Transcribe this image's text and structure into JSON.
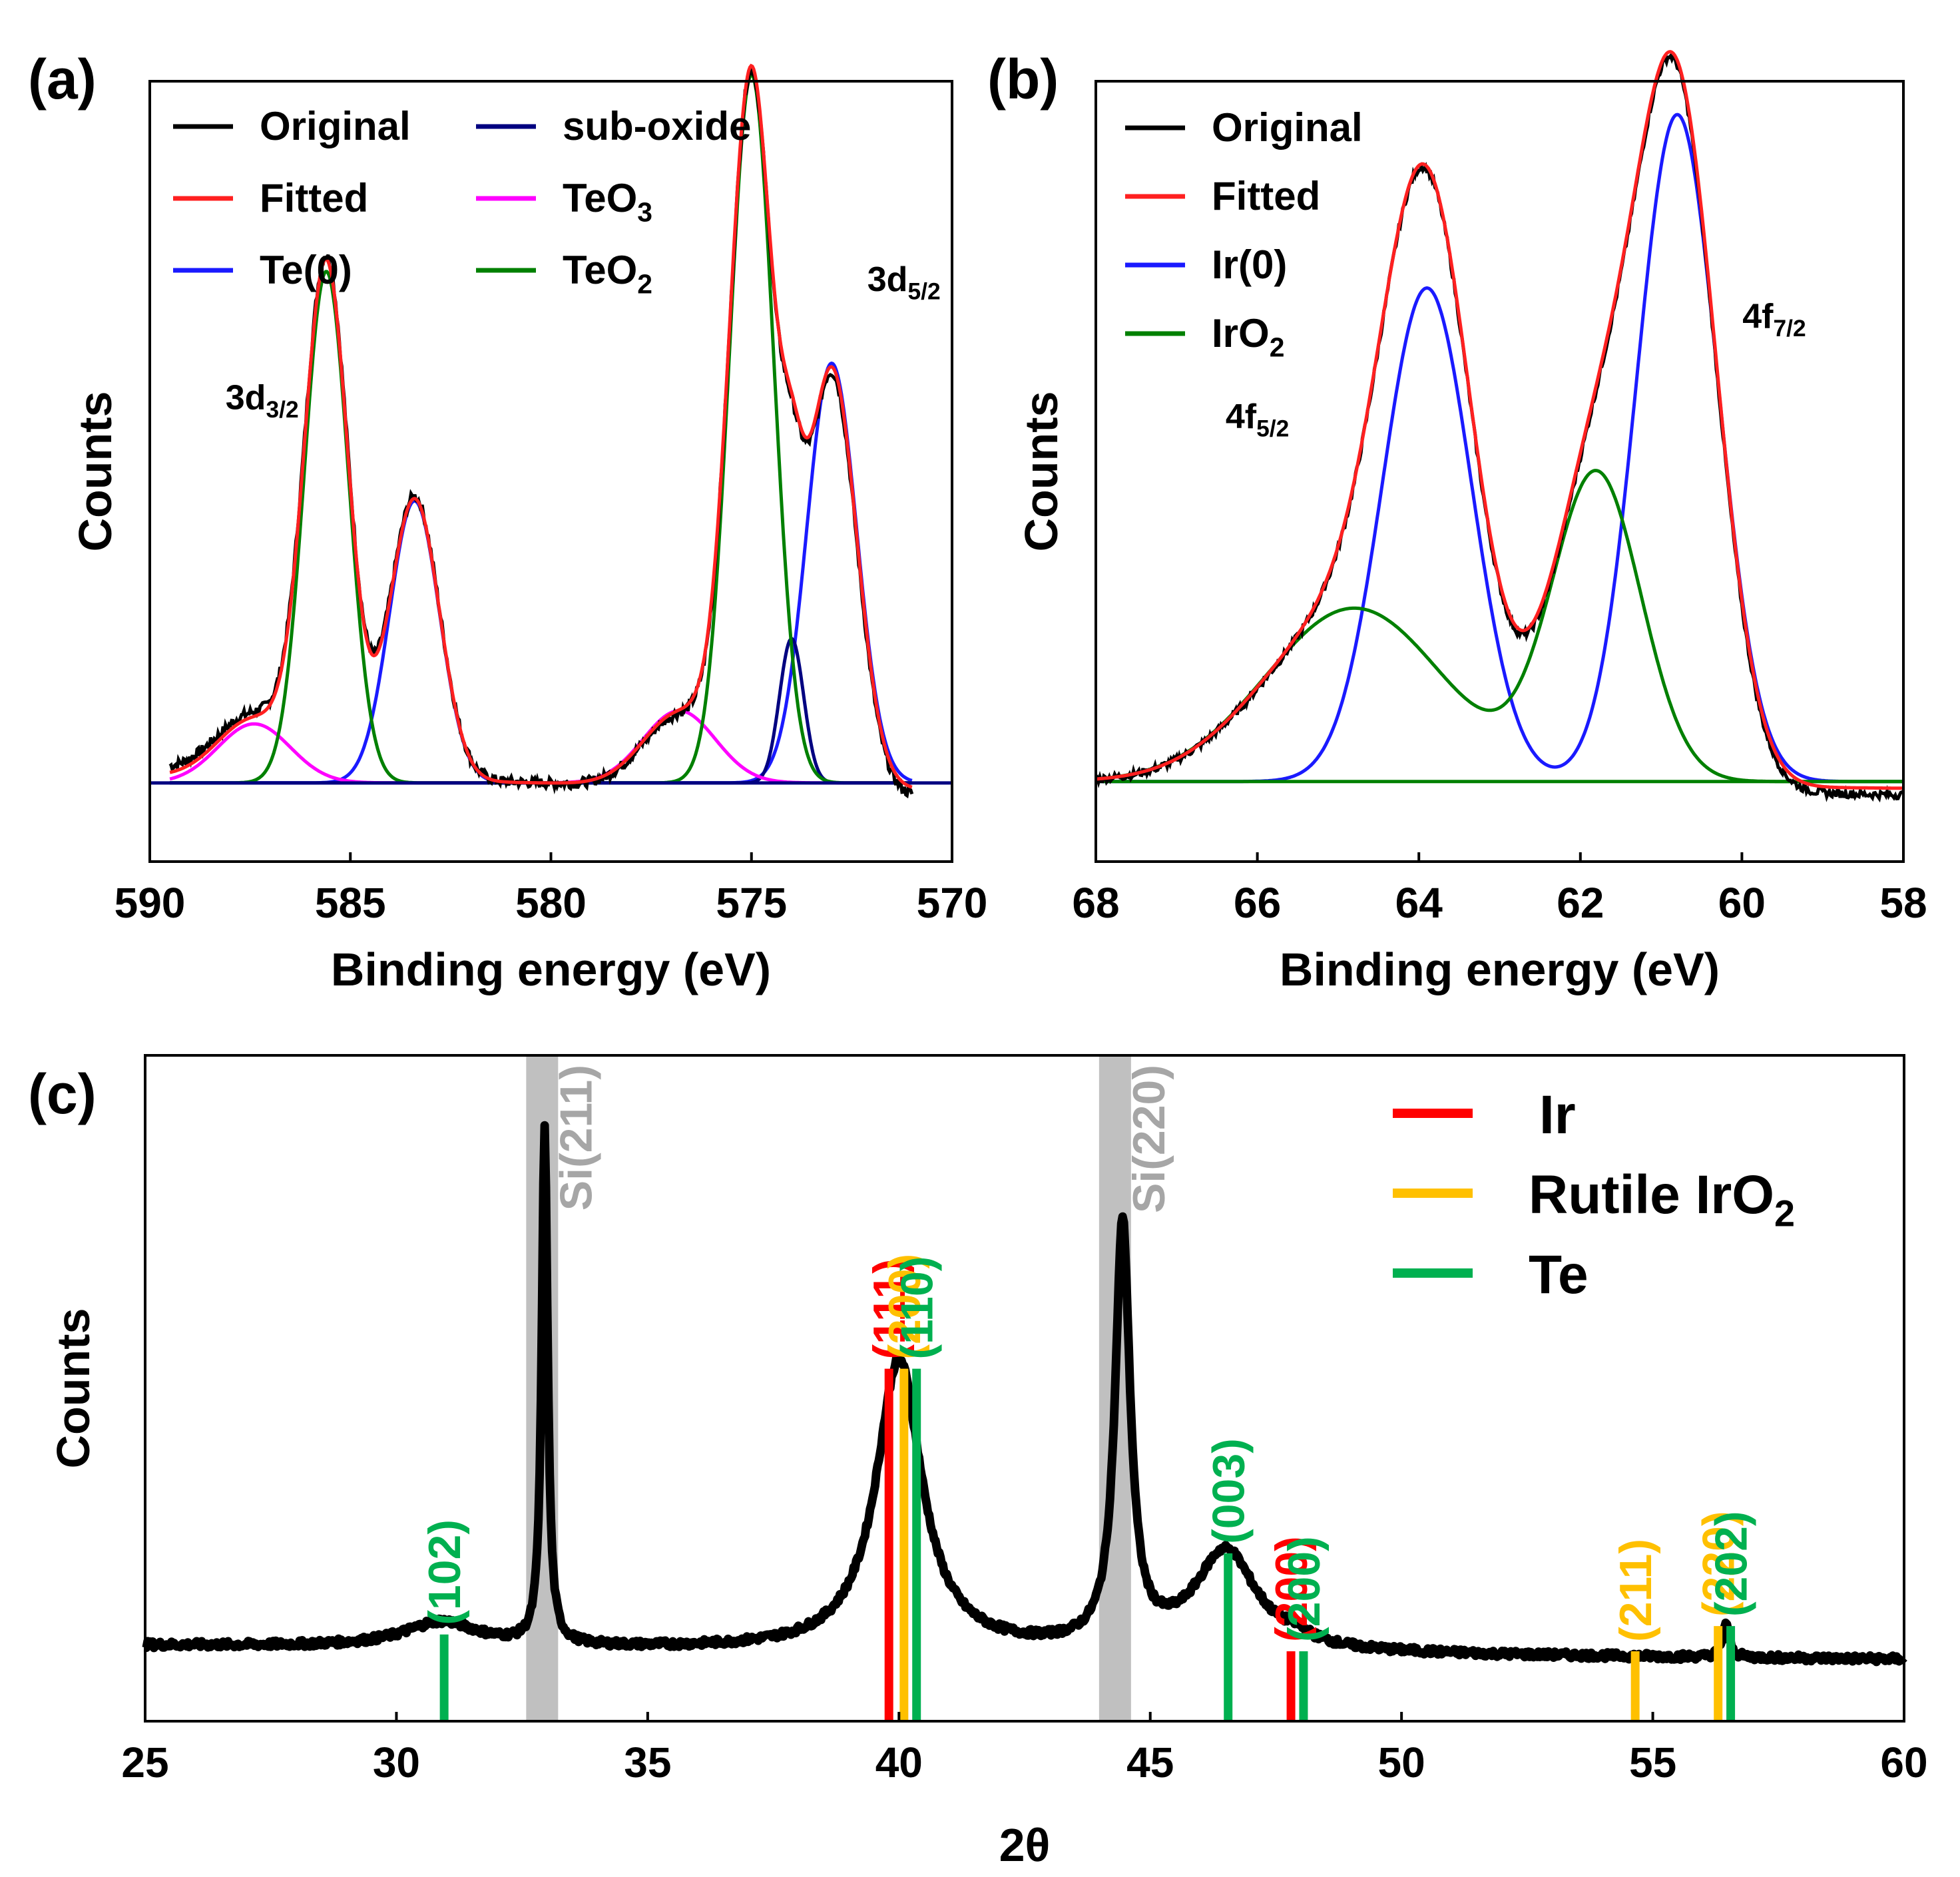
{
  "colors": {
    "original": "#000000",
    "fitted": "#ff2020",
    "te0": "#1a1aff",
    "subOxide": "#000080",
    "teo3": "#ff00ff",
    "teo2": "#008000",
    "ir_ref": "#ff0000",
    "iro2_ref": "#ffc000",
    "te_ref": "#00b050",
    "si_band": "#c0c0c0",
    "si_text": "#a6a6a6",
    "xrd_line": "#000000"
  },
  "chart_data": [
    {
      "id": "a",
      "panel_label": "(a)",
      "type": "line",
      "xlabel": "Binding energy (eV)",
      "ylabel": "Counts",
      "xlim": [
        590,
        570
      ],
      "ylim": [
        -0.12,
        1.07
      ],
      "xticks": [
        "590",
        "585",
        "580",
        "575",
        "570"
      ],
      "xtick_values": [
        590,
        585,
        580,
        575,
        570
      ],
      "legend": [
        {
          "key": "original",
          "label": "Original"
        },
        {
          "key": "fitted",
          "label": "Fitted"
        },
        {
          "key": "te0",
          "label": "Te(0)"
        },
        {
          "key": "subOxide",
          "label": "sub-oxide"
        },
        {
          "key": "teo3",
          "label": "TeO",
          "sub": "3"
        },
        {
          "key": "teo2",
          "label": "TeO",
          "sub": "2"
        }
      ],
      "annotations": [
        {
          "text": "3d",
          "sub": "3/2",
          "x": 587.2,
          "y": 0.57
        },
        {
          "text": "3d",
          "sub": "5/2",
          "x": 571.2,
          "y": 0.75
        }
      ],
      "components": [
        {
          "key": "te0",
          "peaks": [
            {
              "center": 583.4,
              "height": 0.43,
              "sigma": 0.62
            },
            {
              "center": 573.0,
              "height": 0.64,
              "sigma": 0.62
            }
          ]
        },
        {
          "key": "subOxide",
          "peaks": [
            {
              "center": 574.0,
              "height": 0.22,
              "sigma": 0.3
            }
          ]
        },
        {
          "key": "teo3",
          "peaks": [
            {
              "center": 587.4,
              "height": 0.09,
              "sigma": 0.9
            },
            {
              "center": 576.8,
              "height": 0.11,
              "sigma": 0.9
            }
          ]
        },
        {
          "key": "teo2",
          "peaks": [
            {
              "center": 585.6,
              "height": 0.78,
              "sigma": 0.55
            },
            {
              "center": 575.0,
              "height": 1.08,
              "sigma": 0.55
            }
          ]
        }
      ],
      "baseline": {
        "start": 589.5,
        "end": 571.0,
        "left": 0.02,
        "right": -0.02
      },
      "noise_amplitude": 0.008
    },
    {
      "id": "b",
      "panel_label": "(b)",
      "type": "line",
      "xlabel": "Binding energy (eV)",
      "ylabel": "Counts",
      "xlim": [
        68,
        58
      ],
      "ylim": [
        -0.12,
        1.05
      ],
      "xticks": [
        "68",
        "66",
        "64",
        "62",
        "60",
        "58"
      ],
      "xtick_values": [
        68,
        66,
        64,
        62,
        60,
        58
      ],
      "legend": [
        {
          "key": "original",
          "label": "Original"
        },
        {
          "key": "fitted",
          "label": "Fitted"
        },
        {
          "key": "te0",
          "label": "Ir(0)"
        },
        {
          "key": "teo2",
          "label": "IrO",
          "sub": "2"
        }
      ],
      "annotations": [
        {
          "text": "4f",
          "sub": "5/2",
          "x": 66.0,
          "y": 0.53
        },
        {
          "text": "4f",
          "sub": "7/2",
          "x": 59.6,
          "y": 0.68
        }
      ],
      "components": [
        {
          "key": "te0",
          "peaks": [
            {
              "center": 63.9,
              "height": 0.74,
              "sigma": 0.55
            },
            {
              "center": 60.8,
              "height": 1.0,
              "sigma": 0.5
            }
          ]
        },
        {
          "key": "teo2",
          "peaks": [
            {
              "center": 64.8,
              "height": 0.26,
              "sigma": 1.1
            },
            {
              "center": 61.8,
              "height": 0.46,
              "sigma": 0.55
            }
          ]
        }
      ],
      "baseline": {
        "start": 68,
        "end": 58,
        "left": 0.0,
        "right": -0.02
      },
      "noise_amplitude": 0.006
    },
    {
      "id": "c",
      "panel_label": "(c)",
      "type": "line",
      "xlabel": "2θ",
      "ylabel": "Counts",
      "xlim": [
        25,
        60
      ],
      "ylim": [
        -0.11,
        1.08
      ],
      "xticks": [
        "25",
        "30",
        "35",
        "40",
        "45",
        "50",
        "55",
        "60"
      ],
      "xtick_values": [
        25,
        30,
        35,
        40,
        45,
        50,
        55,
        60
      ],
      "legend": [
        {
          "key": "ir_ref",
          "label": "Ir"
        },
        {
          "key": "iro2_ref",
          "label": "Rutile IrO",
          "sub": "2"
        },
        {
          "key": "te_ref",
          "label": "Te"
        }
      ],
      "substrate_bands": [
        {
          "x": 32.9,
          "label": "Si(211)"
        },
        {
          "x": 44.3,
          "label": "Si(220)"
        }
      ],
      "pattern_peaks": [
        {
          "center": 30.9,
          "height": 0.045,
          "gamma": 0.9
        },
        {
          "center": 32.95,
          "height": 0.92,
          "gamma": 0.07
        },
        {
          "center": 40.0,
          "height": 0.52,
          "gamma": 0.55
        },
        {
          "center": 44.45,
          "height": 0.75,
          "gamma": 0.18
        },
        {
          "center": 46.5,
          "height": 0.18,
          "gamma": 0.75
        },
        {
          "center": 47.9,
          "height": 0.012,
          "gamma": 0.3
        },
        {
          "center": 56.45,
          "height": 0.06,
          "gamma": 0.08
        }
      ],
      "background": {
        "left": 0.025,
        "right": 0.0
      },
      "reference_lines": [
        {
          "key": "te_ref",
          "x": 30.95,
          "height": 0.045,
          "label": "(102)"
        },
        {
          "key": "ir_ref",
          "x": 39.8,
          "height": 0.52,
          "label": "(111)"
        },
        {
          "key": "iro2_ref",
          "x": 40.1,
          "height": 0.52,
          "label": "(200)"
        },
        {
          "key": "te_ref",
          "x": 40.35,
          "height": 0.52,
          "label": "(110)"
        },
        {
          "key": "te_ref",
          "x": 46.55,
          "height": 0.19,
          "label": "(003)"
        },
        {
          "key": "ir_ref",
          "x": 47.8,
          "height": 0.015,
          "label": "(200)"
        },
        {
          "key": "te_ref",
          "x": 48.05,
          "height": 0.015,
          "label": "(200)"
        },
        {
          "key": "iro2_ref",
          "x": 54.65,
          "height": 0.015,
          "label": "(211)"
        },
        {
          "key": "iro2_ref",
          "x": 56.3,
          "height": 0.06,
          "label": "(220)"
        },
        {
          "key": "te_ref",
          "x": 56.55,
          "height": 0.06,
          "label": "(202)"
        }
      ]
    }
  ]
}
